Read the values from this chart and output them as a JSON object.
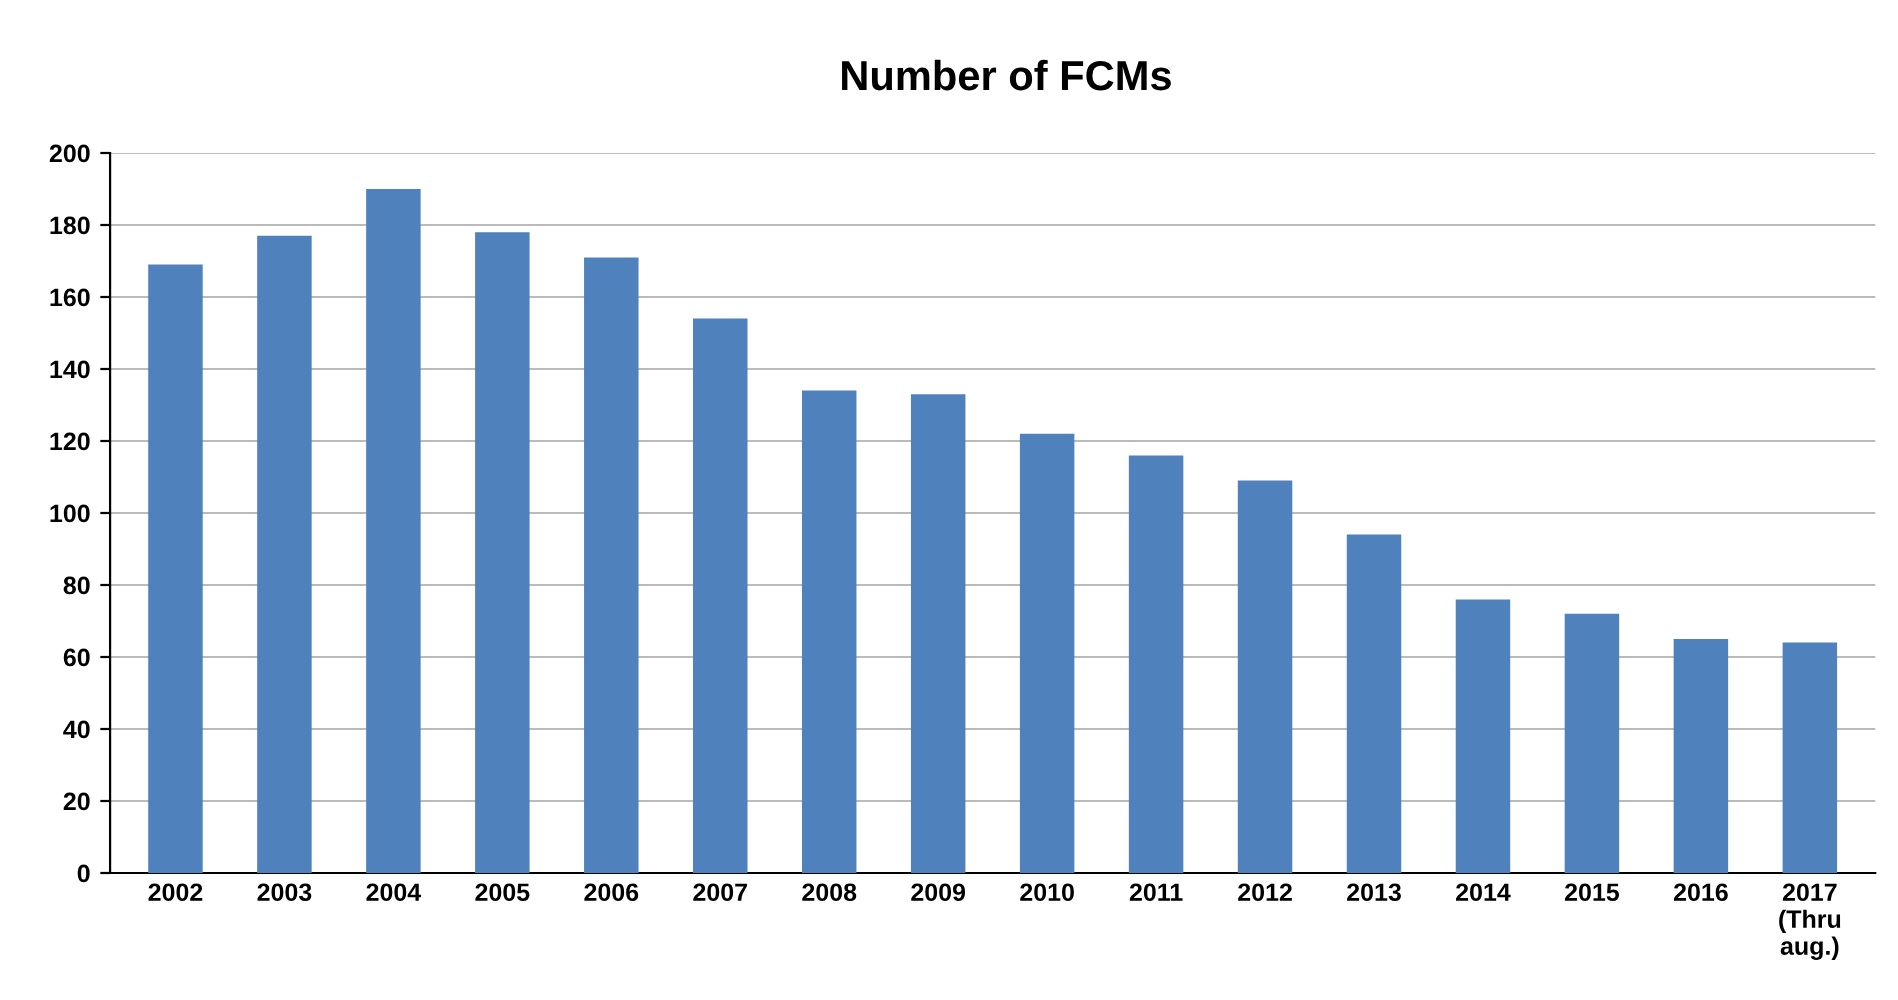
{
  "chart_data": {
    "type": "bar",
    "title": "Number of FCMs",
    "categories": [
      "2002",
      "2003",
      "2004",
      "2005",
      "2006",
      "2007",
      "2008",
      "2009",
      "2010",
      "2011",
      "2012",
      "2013",
      "2014",
      "2015",
      "2016",
      "2017\n(Thru\naug.)"
    ],
    "values": [
      169,
      177,
      190,
      178,
      171,
      154,
      134,
      133,
      122,
      116,
      109,
      94,
      76,
      72,
      65,
      64
    ],
    "color": "#4f81bd",
    "ylim": [
      0,
      200
    ],
    "yticks": [
      0,
      20,
      40,
      60,
      80,
      100,
      120,
      140,
      160,
      180,
      200
    ],
    "grid": "y",
    "legend": false
  }
}
